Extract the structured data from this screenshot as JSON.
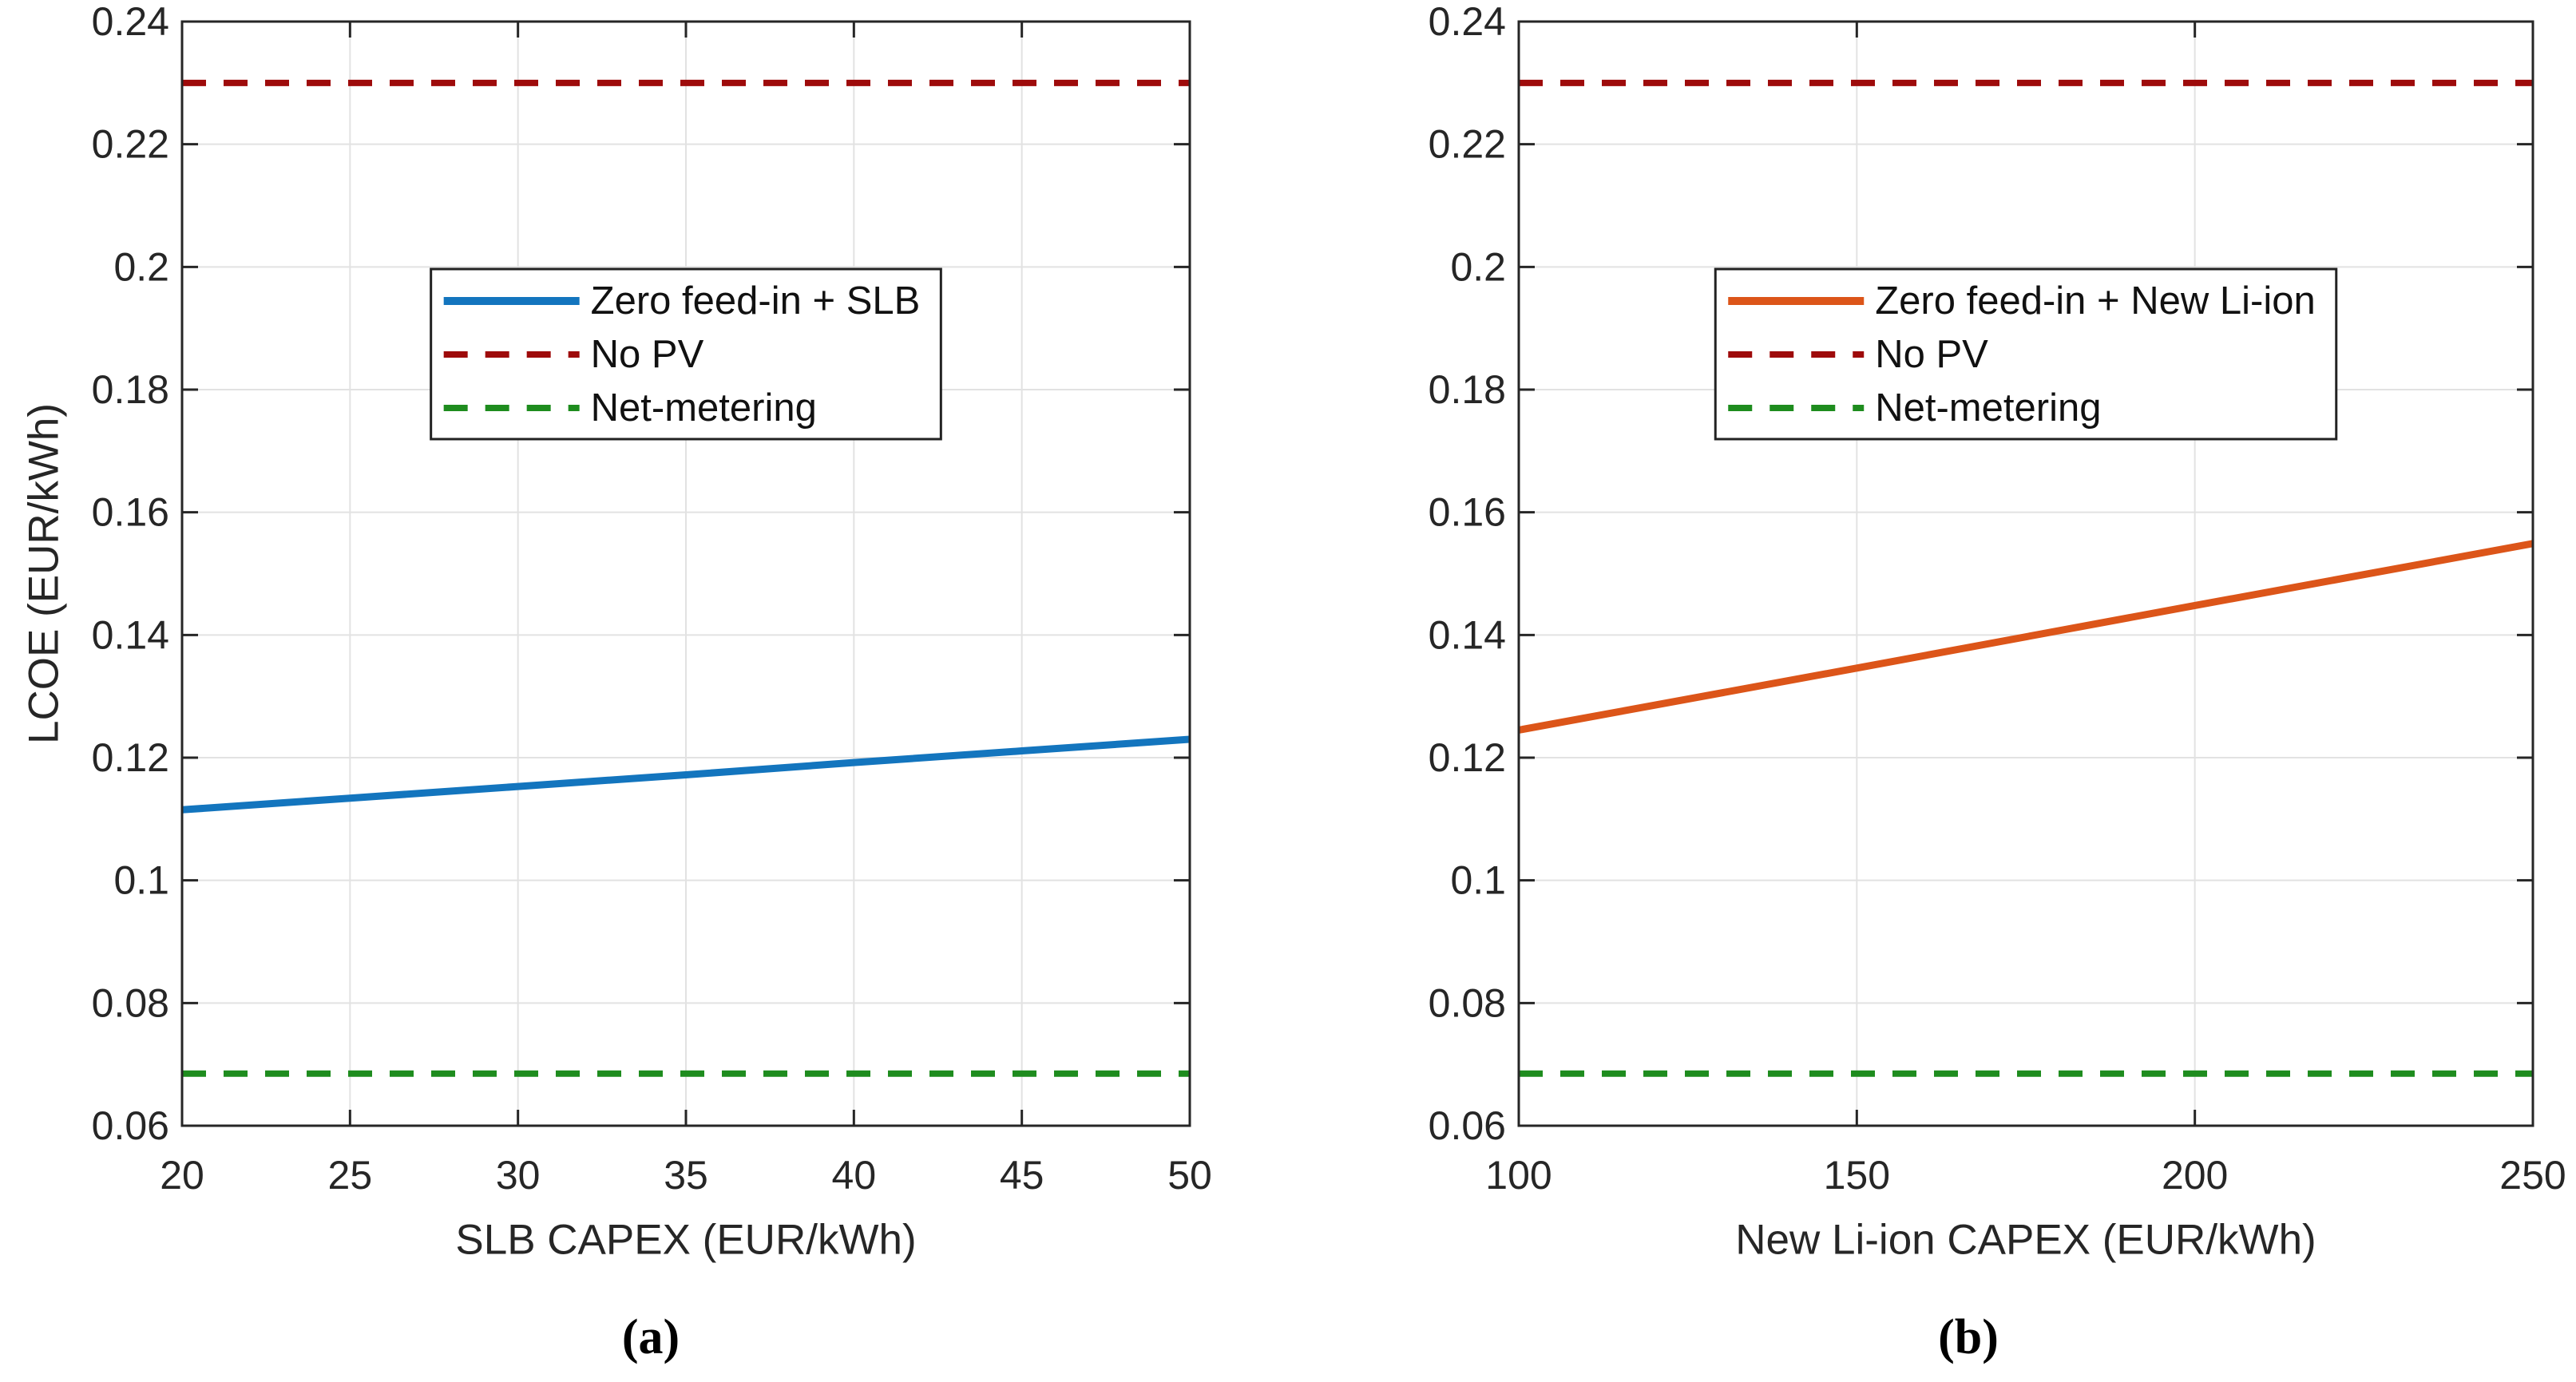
{
  "figure": {
    "background": "#FFFFFF",
    "axis_color": "#262626",
    "grid_color": "#E2E2E2",
    "text_color": "#262626"
  },
  "chart_data": [
    {
      "type": "line",
      "panel_letter": "(a)",
      "title": "",
      "xlabel": "SLB CAPEX (EUR/kWh)",
      "ylabel": "LCOE (EUR/kWh)",
      "xlim": [
        20,
        50
      ],
      "ylim": [
        0.06,
        0.24
      ],
      "xticks": [
        20,
        25,
        30,
        35,
        40,
        45,
        50
      ],
      "xtick_labels": [
        "20",
        "25",
        "30",
        "35",
        "40",
        "45",
        "50"
      ],
      "yticks": [
        0.06,
        0.08,
        0.1,
        0.12,
        0.14,
        0.16,
        0.18,
        0.2,
        0.22,
        0.24
      ],
      "ytick_labels": [
        "0.06",
        "0.08",
        "0.1",
        "0.12",
        "0.14",
        "0.16",
        "0.18",
        "0.2",
        "0.22",
        "0.24"
      ],
      "grid": true,
      "legend_position": "north-inside",
      "series": [
        {
          "name": "Zero feed-in + SLB",
          "style": "solid",
          "color": "#1375BE",
          "x": [
            20,
            25,
            30,
            35,
            40,
            45,
            50
          ],
          "y": [
            0.1115,
            0.1134,
            0.1153,
            0.1172,
            0.1192,
            0.1211,
            0.123
          ]
        },
        {
          "name": "No PV",
          "style": "dashed",
          "color": "#9E0B0B",
          "x": [
            20,
            50
          ],
          "y": [
            0.23,
            0.23
          ]
        },
        {
          "name": "Net-metering",
          "style": "dashed",
          "color": "#1E8C1E",
          "x": [
            20,
            50
          ],
          "y": [
            0.0685,
            0.0685
          ]
        }
      ]
    },
    {
      "type": "line",
      "panel_letter": "(b)",
      "title": "",
      "xlabel": "New Li-ion CAPEX (EUR/kWh)",
      "ylabel": "",
      "xlim": [
        100,
        250
      ],
      "ylim": [
        0.06,
        0.24
      ],
      "xticks": [
        100,
        150,
        200,
        250
      ],
      "xtick_labels": [
        "100",
        "150",
        "200",
        "250"
      ],
      "yticks": [
        0.06,
        0.08,
        0.1,
        0.12,
        0.14,
        0.16,
        0.18,
        0.2,
        0.22,
        0.24
      ],
      "ytick_labels": [
        "0.06",
        "0.08",
        "0.1",
        "0.12",
        "0.14",
        "0.16",
        "0.18",
        "0.2",
        "0.22",
        "0.24"
      ],
      "grid": true,
      "legend_position": "north-inside",
      "series": [
        {
          "name": "Zero feed-in + New Li-ion",
          "style": "solid",
          "color": "#DC5519",
          "x": [
            100,
            150,
            200,
            250
          ],
          "y": [
            0.1245,
            0.1346,
            0.1448,
            0.1549
          ]
        },
        {
          "name": "No PV",
          "style": "dashed",
          "color": "#9E0B0B",
          "x": [
            100,
            250
          ],
          "y": [
            0.23,
            0.23
          ]
        },
        {
          "name": "Net-metering",
          "style": "dashed",
          "color": "#1E8C1E",
          "x": [
            100,
            250
          ],
          "y": [
            0.0685,
            0.0685
          ]
        }
      ]
    }
  ]
}
